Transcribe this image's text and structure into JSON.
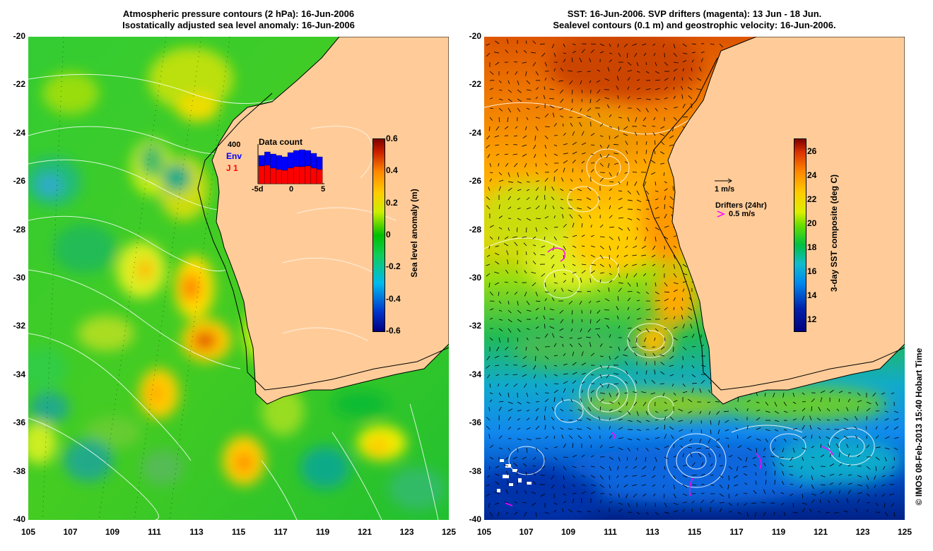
{
  "left": {
    "title1": "Atmospheric pressure contours (2 hPa): 16-Jun-2006",
    "title2": "Isostatically adjusted sea level anomaly: 16-Jun-2006",
    "colorbar_label": "Sea level anomaly (m)",
    "colorbar_ticks": [
      "0.6",
      "0.4",
      "0.2",
      "0",
      "-0.2",
      "-0.4",
      "-0.6"
    ],
    "inset": {
      "title": "Data count",
      "ymax": "400",
      "legend_env": "Env",
      "legend_j": "J 1",
      "xticks": [
        "-5d",
        "0",
        "5"
      ],
      "env_color": "#0000ff",
      "j_color": "#ff0000"
    }
  },
  "right": {
    "title1": "SST: 16-Jun-2006. SVP drifters (magenta): 13 Jun - 18 Jun.",
    "title2": "Sealevel contours (0.1 m) and geostrophic velocity: 16-Jun-2006.",
    "colorbar_label": "3-day SST composite (deg C)",
    "colorbar_ticks": [
      "26",
      "24",
      "22",
      "20",
      "18",
      "16",
      "14",
      "12"
    ],
    "scale_label": "1 m/s",
    "drifters_label": "Drifters (24hr)",
    "drifters_scale": "0.5 m/s",
    "drifter_color": "#ff00ff"
  },
  "axes": {
    "lat_ticks": [
      "-20",
      "-22",
      "-24",
      "-26",
      "-28",
      "-30",
      "-32",
      "-34",
      "-36",
      "-38",
      "-40"
    ],
    "lon_ticks": [
      "105",
      "107",
      "109",
      "111",
      "113",
      "115",
      "117",
      "119",
      "121",
      "123",
      "125"
    ]
  },
  "colors": {
    "land": "#ffcc99",
    "contour": "#ffffff",
    "coast": "#000000"
  },
  "watermark": "© IMOS 08-Feb-2013 15:40 Hobart Time"
}
